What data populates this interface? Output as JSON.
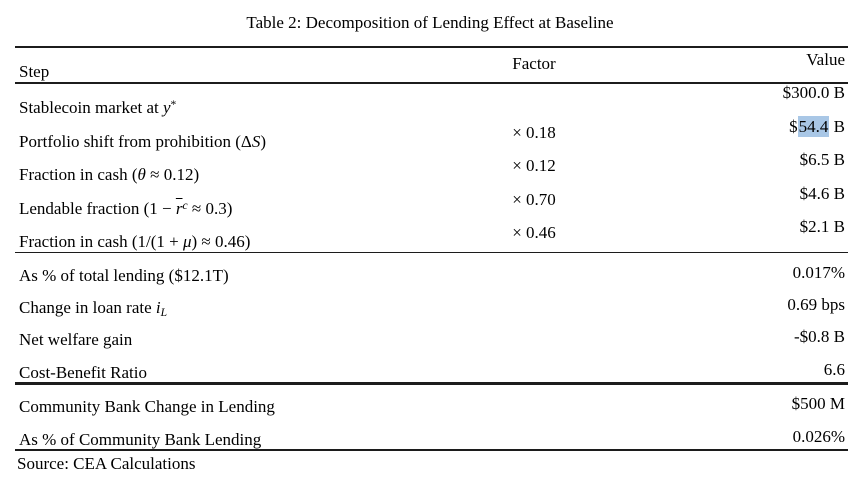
{
  "title": "Table 2: Decomposition of Lending Effect at Baseline",
  "source": "Source: CEA Calculations",
  "highlight_color": "#a9c7e6",
  "rule_color": "#1c1c1c",
  "table": {
    "columns": [
      "Step",
      "Factor",
      "Value"
    ],
    "rows": [
      {
        "block": 1,
        "step": [
          {
            "t": "Stablecoin market at "
          },
          {
            "t": "y",
            "s": "i"
          },
          {
            "t": "*",
            "s": "sup"
          }
        ],
        "factor": "",
        "value": [
          {
            "t": "$300.0 B"
          }
        ]
      },
      {
        "block": 1,
        "step": [
          {
            "t": "Portfolio shift from prohibition (Δ"
          },
          {
            "t": "S",
            "s": "i"
          },
          {
            "t": ")"
          }
        ],
        "factor": "× 0.18",
        "value": [
          {
            "t": "$"
          },
          {
            "t": "54.4",
            "hl": true
          },
          {
            "t": " B"
          }
        ]
      },
      {
        "block": 1,
        "step": [
          {
            "t": "Fraction in cash ("
          },
          {
            "t": "θ",
            "s": "i"
          },
          {
            "t": " ≈ 0.12)"
          }
        ],
        "factor": "× 0.12",
        "value": [
          {
            "t": "$6.5 B"
          }
        ]
      },
      {
        "block": 1,
        "step": [
          {
            "t": "Lendable fraction (1 − "
          },
          {
            "t": "r",
            "s": "ibar"
          },
          {
            "t": "c",
            "s": "supi"
          },
          {
            "t": " ≈ 0.3)"
          }
        ],
        "factor": "× 0.70",
        "value": [
          {
            "t": "$4.6 B"
          }
        ]
      },
      {
        "block": 1,
        "step": [
          {
            "t": "Fraction in cash (1/(1 + "
          },
          {
            "t": "μ",
            "s": "i"
          },
          {
            "t": ") ≈ 0.46)"
          }
        ],
        "factor": "× 0.46",
        "value": [
          {
            "t": "$2.1 B"
          }
        ]
      },
      {
        "block": 2,
        "step": [
          {
            "t": "As % of total lending ($12.1T)"
          }
        ],
        "factor": "",
        "value": [
          {
            "t": "0.017%"
          }
        ]
      },
      {
        "block": 2,
        "step": [
          {
            "t": "Change in loan rate "
          },
          {
            "t": "i",
            "s": "i"
          },
          {
            "t": "L",
            "s": "subi"
          }
        ],
        "factor": "",
        "value": [
          {
            "t": "0.69 bps"
          }
        ]
      },
      {
        "block": 2,
        "step": [
          {
            "t": "Net welfare gain"
          }
        ],
        "factor": "",
        "value": [
          {
            "t": "-$0.8 B"
          }
        ]
      },
      {
        "block": 2,
        "step": [
          {
            "t": "Cost-Benefit Ratio"
          }
        ],
        "factor": "",
        "value": [
          {
            "t": "6.6"
          }
        ]
      },
      {
        "block": 3,
        "step": [
          {
            "t": "Community Bank Change in Lending"
          }
        ],
        "factor": "",
        "value": [
          {
            "t": "$500 M"
          }
        ]
      },
      {
        "block": 3,
        "step": [
          {
            "t": "As % of Community Bank Lending"
          }
        ],
        "factor": "",
        "value": [
          {
            "t": "0.026%"
          }
        ]
      }
    ]
  }
}
